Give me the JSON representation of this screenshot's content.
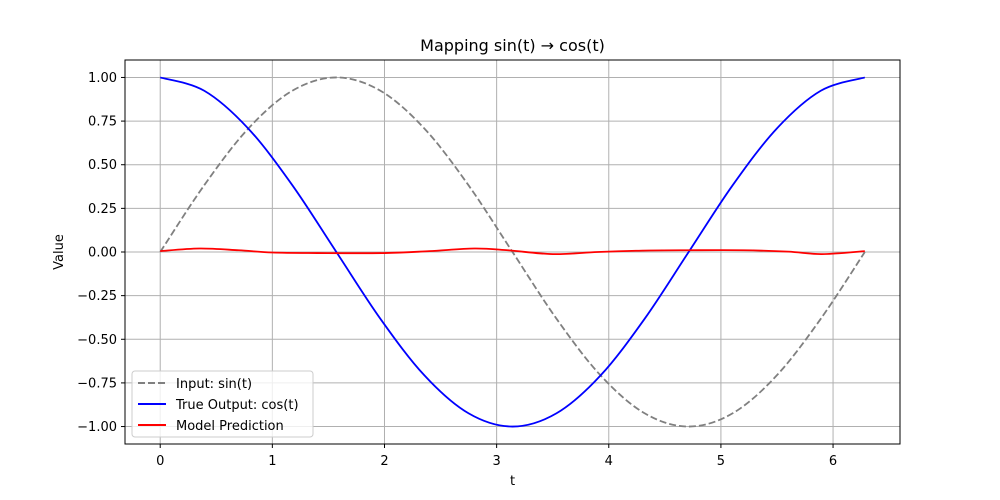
{
  "chart_data": {
    "type": "line",
    "title": "Mapping sin(t) → cos(t)",
    "xlabel": "t",
    "ylabel": "Value",
    "xlim": [
      -0.314,
      6.597
    ],
    "ylim": [
      -1.1,
      1.1
    ],
    "xticks": [
      0,
      1,
      2,
      3,
      4,
      5,
      6
    ],
    "xtick_labels": [
      "0",
      "1",
      "2",
      "3",
      "4",
      "5",
      "6"
    ],
    "yticks": [
      1.0,
      0.75,
      0.5,
      0.25,
      0.0,
      -0.25,
      -0.5,
      -0.75,
      -1.0
    ],
    "ytick_labels": [
      "1.00",
      "0.75",
      "0.50",
      "0.25",
      "0.00",
      "−0.25",
      "−0.50",
      "−0.75",
      "−1.00"
    ],
    "grid": true,
    "legend_position": "lower-left",
    "series": [
      {
        "name": "Input: sin(t)",
        "color": "#808080",
        "style": "dashed",
        "x": [
          0,
          0.3927,
          0.7854,
          1.1781,
          1.5708,
          1.9635,
          2.3562,
          2.7489,
          3.1416,
          3.5343,
          3.927,
          4.3197,
          4.7124,
          5.1051,
          5.4978,
          5.8905,
          6.2832
        ],
        "y": [
          0,
          0.3827,
          0.7071,
          0.9239,
          1.0,
          0.9239,
          0.7071,
          0.3827,
          0,
          -0.3827,
          -0.7071,
          -0.9239,
          -1.0,
          -0.9239,
          -0.7071,
          -0.3827,
          0
        ]
      },
      {
        "name": "True Output: cos(t)",
        "color": "#0000ff",
        "style": "solid",
        "x": [
          0,
          0.3927,
          0.7854,
          1.1781,
          1.5708,
          1.9635,
          2.3562,
          2.7489,
          3.1416,
          3.5343,
          3.927,
          4.3197,
          4.7124,
          5.1051,
          5.4978,
          5.8905,
          6.2832
        ],
        "y": [
          1.0,
          0.9239,
          0.7071,
          0.3827,
          0,
          -0.3827,
          -0.7071,
          -0.9239,
          -1.0,
          -0.9239,
          -0.7071,
          -0.3827,
          0,
          0.3827,
          0.7071,
          0.9239,
          1.0
        ]
      },
      {
        "name": "Model Prediction",
        "color": "#ff0000",
        "style": "solid",
        "x": [
          0,
          0.35,
          0.7,
          1.0,
          1.4,
          2.0,
          2.4,
          2.8,
          3.1,
          3.5,
          3.9,
          4.3,
          4.7,
          5.2,
          5.6,
          5.9,
          6.2832
        ],
        "y": [
          0.005,
          0.02,
          0.01,
          -0.003,
          -0.006,
          -0.006,
          0.005,
          0.02,
          0.01,
          -0.012,
          0.0,
          0.008,
          0.01,
          0.01,
          0.002,
          -0.012,
          0.005
        ]
      }
    ]
  }
}
